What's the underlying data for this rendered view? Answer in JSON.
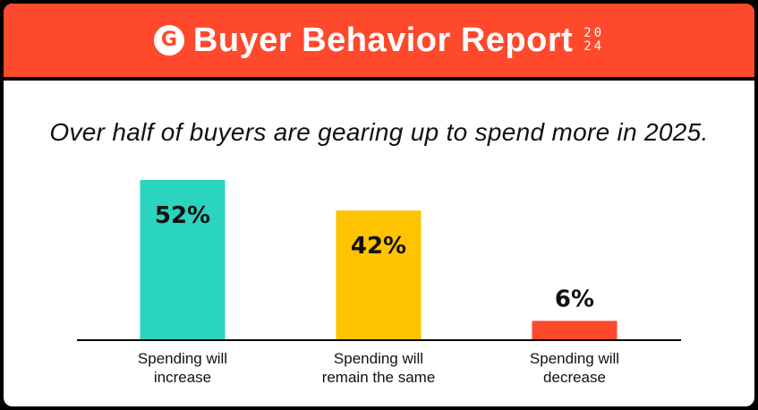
{
  "header": {
    "logo_glyph": "G",
    "title": "Buyer Behavior Report",
    "year_top": "20",
    "year_bottom": "24"
  },
  "headline": "Over half of buyers are gearing up to spend more in 2025.",
  "colors": {
    "brand": "#ff492c",
    "increase": "#2ad4be",
    "same": "#ffc300",
    "decrease": "#ff492c"
  },
  "chart_data": {
    "type": "bar",
    "categories": [
      "Spending will increase",
      "Spending will remain the same",
      "Spending will decrease"
    ],
    "category_lines": [
      [
        "Spending will",
        "increase"
      ],
      [
        "Spending will",
        "remain the same"
      ],
      [
        "Spending will",
        "decrease"
      ]
    ],
    "values": [
      52,
      42,
      6
    ],
    "value_labels": [
      "52%",
      "42%",
      "6%"
    ],
    "bar_colors": [
      "#2ad4be",
      "#ffc300",
      "#ff492c"
    ],
    "ylim": [
      0,
      52
    ],
    "grid": false
  }
}
